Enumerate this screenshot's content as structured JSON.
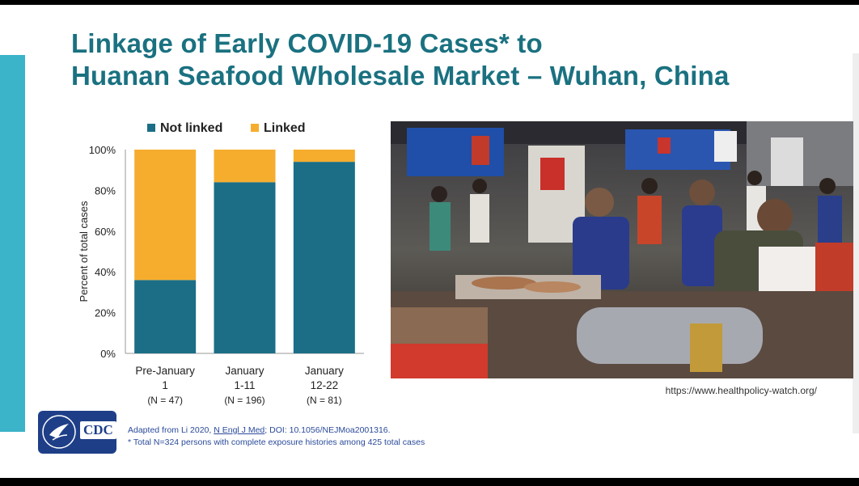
{
  "slide": {
    "title_line1": "Linkage of Early COVID-19 Cases* to",
    "title_line2": "Huanan Seafood Wholesale Market – Wuhan, China"
  },
  "photo": {
    "credit": "https://www.healthpolicy-watch.org/"
  },
  "logo": {
    "text": "CDC"
  },
  "citation": {
    "prefix": "Adapted from Li 2020, ",
    "journal": "N Engl J Med",
    "suffix": "; DOI: 10.1056/NEJMoa2001316.",
    "footnote": "* Total N=324 persons with complete exposure histories among 425 total cases"
  },
  "chart_data": {
    "type": "bar",
    "stacked": true,
    "ylabel": "Percent of total cases",
    "ylim": [
      0,
      100
    ],
    "yticks": [
      "0%",
      "20%",
      "40%",
      "60%",
      "80%",
      "100%"
    ],
    "ytick_values": [
      0,
      20,
      40,
      60,
      80,
      100
    ],
    "legend_position": "top",
    "categories": [
      {
        "line1": "Pre-January",
        "line2": "1",
        "n": "(N = 47)"
      },
      {
        "line1": "January",
        "line2": "1-11",
        "n": "(N = 196)"
      },
      {
        "line1": "January",
        "line2": "12-22",
        "n": "(N = 81)"
      }
    ],
    "series": [
      {
        "name": "Not linked",
        "color": "#1b6e86",
        "values": [
          36,
          84,
          94
        ]
      },
      {
        "name": "Linked",
        "color": "#f6ad2e",
        "values": [
          64,
          16,
          6
        ]
      }
    ]
  }
}
